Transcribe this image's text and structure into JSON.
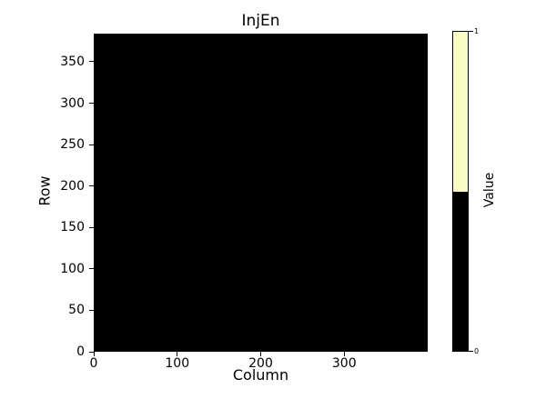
{
  "chart_data": {
    "type": "heatmap",
    "title": "InjEn",
    "xlabel": "Column",
    "ylabel": "Row",
    "xlim": [
      0,
      400
    ],
    "ylim": [
      0,
      384
    ],
    "xticks": [
      0,
      100,
      200,
      300
    ],
    "yticks": [
      0,
      50,
      100,
      150,
      200,
      250,
      300,
      350
    ],
    "grid": false,
    "matrix": {
      "rows": 384,
      "cols": 400,
      "uniform_value": 0
    },
    "value_colors": {
      "0": "#000000",
      "1": "#fbfbc6"
    },
    "colorbar": {
      "label": "Value",
      "ticks": [
        {
          "value": 1,
          "position": "top"
        },
        {
          "value": 0,
          "position": "bottom"
        }
      ],
      "segments": [
        {
          "value": 1,
          "color": "#fbfbc6"
        },
        {
          "value": 0,
          "color": "#000000"
        }
      ]
    }
  }
}
